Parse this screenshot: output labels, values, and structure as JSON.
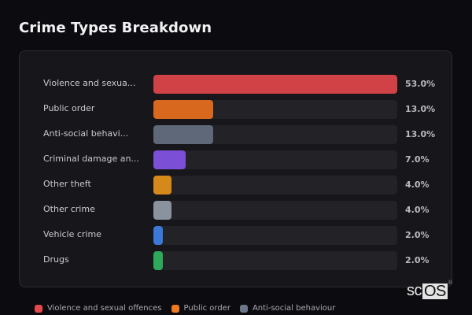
{
  "header": {
    "title": "Crime Types Breakdown"
  },
  "rows": [
    {
      "label": "Violence and sexua...",
      "value_label": "53.0%",
      "color": "#d04245"
    },
    {
      "label": "Public order",
      "value_label": "13.0%",
      "color": "#d9681f"
    },
    {
      "label": "Anti-social behavi...",
      "value_label": "13.0%",
      "color": "#5e6878"
    },
    {
      "label": "Criminal damage an...",
      "value_label": "7.0%",
      "color": "#7b4fd6"
    },
    {
      "label": "Other theft",
      "value_label": "4.0%",
      "color": "#d4891a"
    },
    {
      "label": "Other crime",
      "value_label": "4.0%",
      "color": "#8a929e"
    },
    {
      "label": "Vehicle crime",
      "value_label": "2.0%",
      "color": "#3b78d8"
    },
    {
      "label": "Drugs",
      "value_label": "2.0%",
      "color": "#2ea85a"
    }
  ],
  "legend": [
    {
      "label": "Violence and sexual offences",
      "color": "#e5484d"
    },
    {
      "label": "Public order",
      "color": "#f07a22"
    },
    {
      "label": "Anti-social behaviour",
      "color": "#6b7789"
    }
  ],
  "watermark": {
    "prefix": "sc",
    "boxed": "OS",
    "mark": "®"
  },
  "chart_data": {
    "type": "bar",
    "orientation": "horizontal",
    "title": "Crime Types Breakdown",
    "categories": [
      "Violence and sexual offences",
      "Public order",
      "Anti-social behaviour",
      "Criminal damage and arson",
      "Other theft",
      "Other crime",
      "Vehicle crime",
      "Drugs"
    ],
    "category_labels_displayed": [
      "Violence and sexua...",
      "Public order",
      "Anti-social behavi...",
      "Criminal damage an...",
      "Other theft",
      "Other crime",
      "Vehicle crime",
      "Drugs"
    ],
    "values": [
      53.0,
      13.0,
      13.0,
      7.0,
      4.0,
      4.0,
      2.0,
      2.0
    ],
    "unit": "%",
    "xlabel": "",
    "ylabel": "",
    "xlim": [
      0,
      53
    ],
    "grid": false,
    "legend": {
      "position": "bottom",
      "entries": [
        "Violence and sexual offences",
        "Public order",
        "Anti-social behaviour"
      ]
    },
    "colors": [
      "#d04245",
      "#d9681f",
      "#5e6878",
      "#7b4fd6",
      "#d4891a",
      "#8a929e",
      "#3b78d8",
      "#2ea85a"
    ]
  }
}
